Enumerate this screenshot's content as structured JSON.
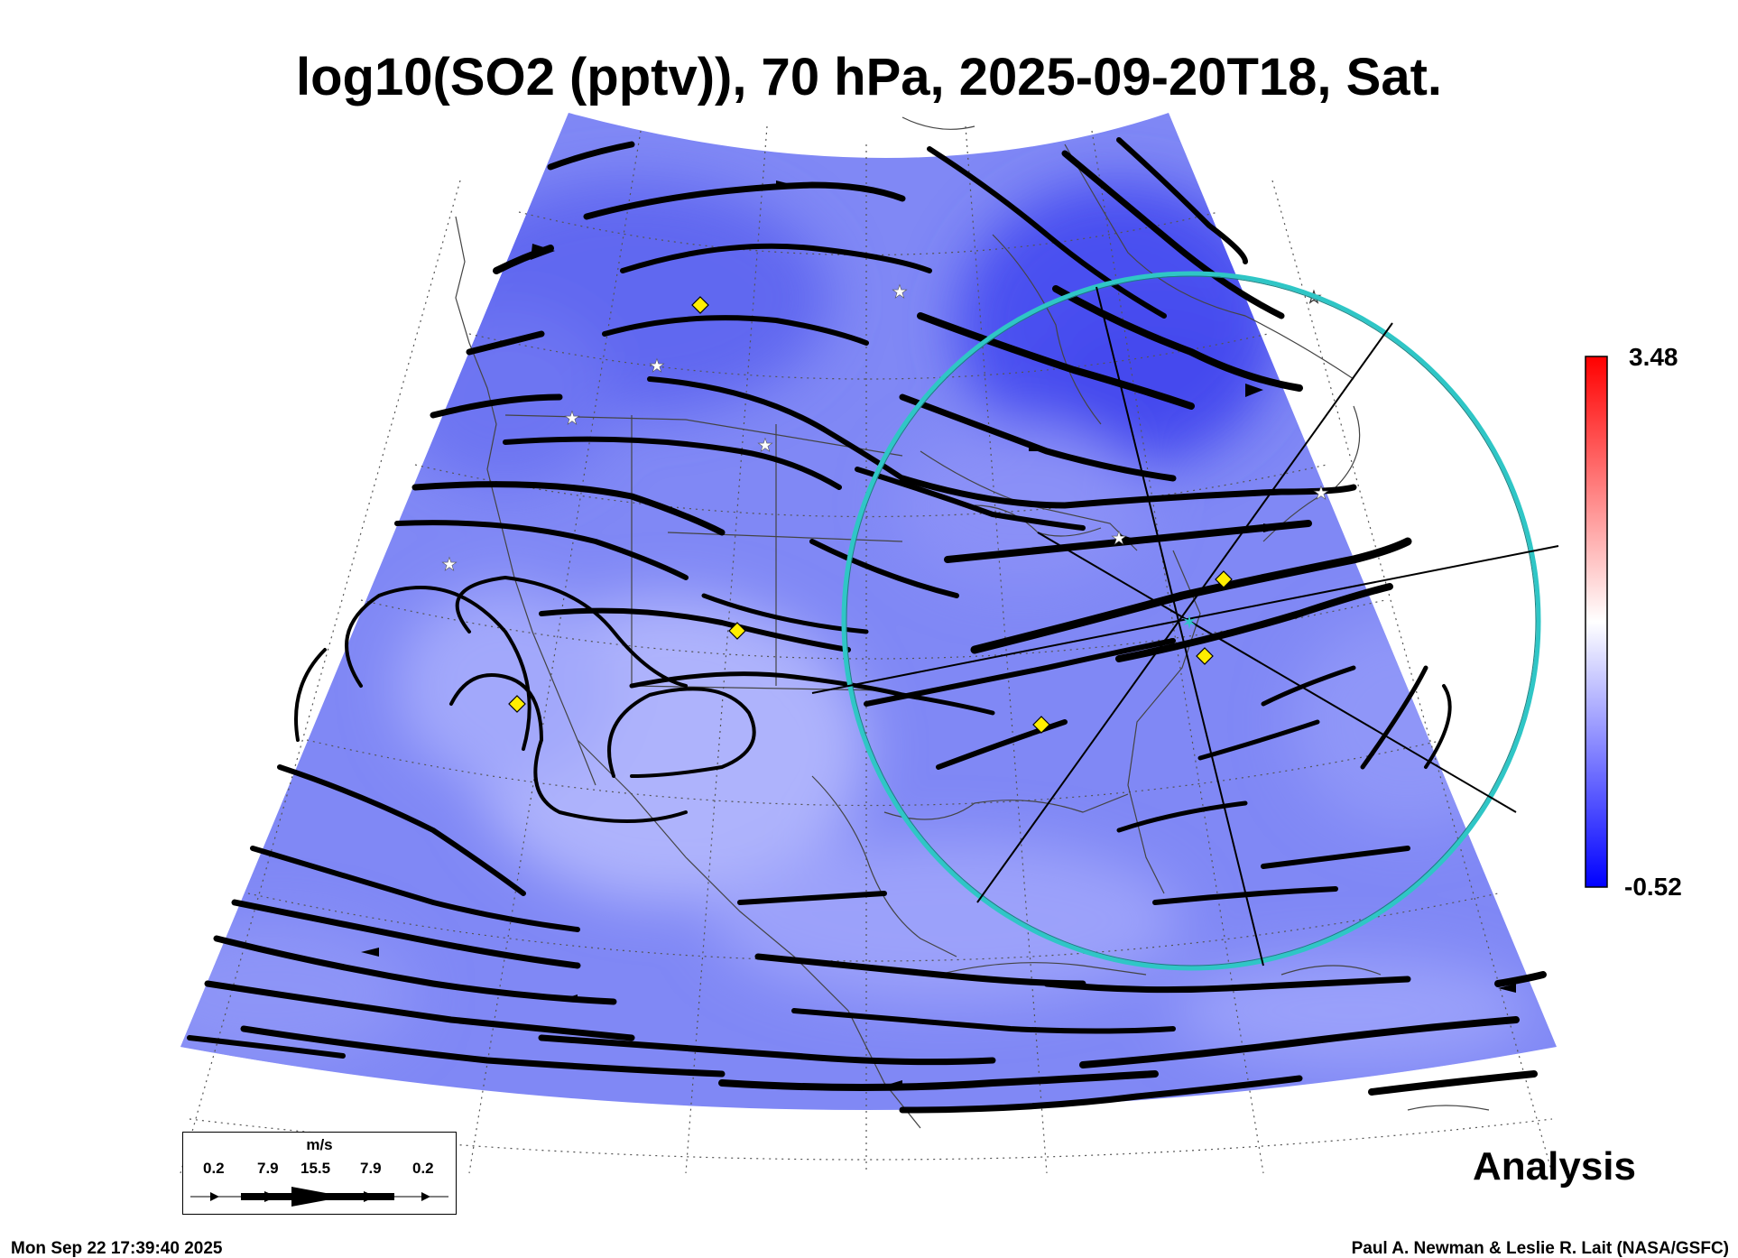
{
  "title": "log10(SO2 (pptv)), 70 hPa, 2025-09-20T18, Sat.",
  "colorbar": {
    "max_label": "3.48",
    "min_label": "-0.52",
    "colors": [
      "#0000ff",
      "#8080ff",
      "#ffffff",
      "#ff8080",
      "#ff0000"
    ]
  },
  "field_colors": {
    "background": "#7f88f5",
    "dark": "#4c52ee",
    "light": "#b9beff"
  },
  "wind_legend": {
    "unit": "m/s",
    "labels": [
      "0.2",
      "7.9",
      "15.5",
      "7.9",
      "0.2"
    ]
  },
  "range_ring_color": "#2fc6c6",
  "marker_colors": {
    "diamond": "#ffee00",
    "star": "#ffffff"
  },
  "analysis_label": "Analysis",
  "timestamp": "Mon Sep 22 17:39:40 2025",
  "credit": "Paul A. Newman & Leslie R. Lait (NASA/GSFC)"
}
